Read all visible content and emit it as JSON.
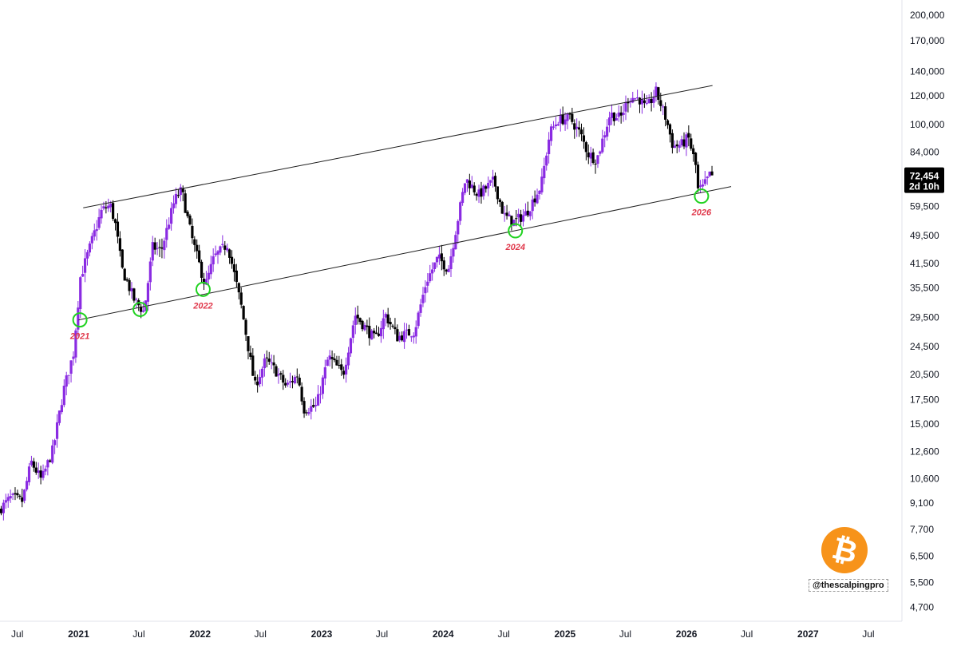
{
  "chart_data": {
    "type": "candlestick",
    "title": "",
    "xlabel": "",
    "ylabel": "",
    "scale": "log",
    "ylim": [
      4300,
      220000
    ],
    "xlim": [
      "2020-05-10",
      "2027-10-10"
    ],
    "y_ticks": [
      "200,000",
      "170,000",
      "140,000",
      "120,000",
      "100,000",
      "84,000",
      "59,500",
      "49,500",
      "41,500",
      "35,500",
      "29,500",
      "24,500",
      "20,500",
      "17,500",
      "15,000",
      "12,600",
      "10,600",
      "9,100",
      "7,700",
      "6,500",
      "5,500",
      "4,700"
    ],
    "y_tick_values": [
      200000,
      170000,
      140000,
      120000,
      100000,
      84000,
      59500,
      49500,
      41500,
      35500,
      29500,
      24500,
      20500,
      17500,
      15000,
      12600,
      10600,
      9100,
      7700,
      6500,
      5500,
      4700
    ],
    "x_ticks": [
      {
        "label": "Jul",
        "date": "2020-07-01",
        "year": false
      },
      {
        "label": "2021",
        "date": "2021-01-01",
        "year": true
      },
      {
        "label": "Jul",
        "date": "2021-07-01",
        "year": false
      },
      {
        "label": "2022",
        "date": "2022-01-01",
        "year": true
      },
      {
        "label": "Jul",
        "date": "2022-07-01",
        "year": false
      },
      {
        "label": "2023",
        "date": "2023-01-01",
        "year": true
      },
      {
        "label": "Jul",
        "date": "2023-07-01",
        "year": false
      },
      {
        "label": "2024",
        "date": "2024-01-01",
        "year": true
      },
      {
        "label": "Jul",
        "date": "2024-07-01",
        "year": false
      },
      {
        "label": "2025",
        "date": "2025-01-01",
        "year": true
      },
      {
        "label": "Jul",
        "date": "2025-07-01",
        "year": false
      },
      {
        "label": "2026",
        "date": "2026-01-01",
        "year": true
      },
      {
        "label": "Jul",
        "date": "2026-07-01",
        "year": false
      },
      {
        "label": "2027",
        "date": "2027-01-01",
        "year": true
      },
      {
        "label": "Jul",
        "date": "2027-07-01",
        "year": false
      }
    ],
    "last_price": "72,454",
    "countdown": "2d 10h",
    "up_color": "#8a2be2",
    "down_color": "#000000",
    "channel": {
      "upper": [
        {
          "date": "2021-01-15",
          "y": 59000
        },
        {
          "date": "2026-03-20",
          "y": 128000
        }
      ],
      "lower": [
        {
          "date": "2021-01-01",
          "y": 29000
        },
        {
          "date": "2026-05-15",
          "y": 67500
        }
      ]
    },
    "touch_points": [
      {
        "label": "2021",
        "date": "2021-01-05",
        "y": 29000
      },
      {
        "label": "",
        "date": "2021-07-05",
        "y": 31000
      },
      {
        "label": "2022",
        "date": "2022-01-10",
        "y": 35200
      },
      {
        "label": "2024",
        "date": "2024-08-05",
        "y": 51000
      },
      {
        "label": "2026",
        "date": "2026-02-15",
        "y": 63500
      }
    ],
    "series_path": [
      [
        "2020-05-10",
        8700
      ],
      [
        "2020-06-15",
        9400
      ],
      [
        "2020-07-20",
        9200
      ],
      [
        "2020-08-15",
        11800
      ],
      [
        "2020-09-15",
        10500
      ],
      [
        "2020-10-20",
        12800
      ],
      [
        "2020-11-20",
        18500
      ],
      [
        "2020-12-20",
        23500
      ],
      [
        "2021-01-10",
        38000
      ],
      [
        "2021-02-20",
        50000
      ],
      [
        "2021-03-15",
        58000
      ],
      [
        "2021-04-10",
        60000
      ],
      [
        "2021-04-25",
        53000
      ],
      [
        "2021-05-15",
        40000
      ],
      [
        "2021-06-20",
        33000
      ],
      [
        "2021-07-20",
        30500
      ],
      [
        "2021-08-15",
        46000
      ],
      [
        "2021-09-10",
        45000
      ],
      [
        "2021-10-20",
        62000
      ],
      [
        "2021-11-10",
        66000
      ],
      [
        "2021-12-10",
        49000
      ],
      [
        "2022-01-20",
        36000
      ],
      [
        "2022-02-15",
        43000
      ],
      [
        "2022-03-28",
        47000
      ],
      [
        "2022-05-10",
        31000
      ],
      [
        "2022-06-18",
        19000
      ],
      [
        "2022-07-20",
        22500
      ],
      [
        "2022-08-20",
        21000
      ],
      [
        "2022-09-20",
        19000
      ],
      [
        "2022-10-25",
        20500
      ],
      [
        "2022-11-12",
        16500
      ],
      [
        "2022-12-20",
        16800
      ],
      [
        "2023-01-25",
        23000
      ],
      [
        "2023-03-10",
        20500
      ],
      [
        "2023-04-15",
        30000
      ],
      [
        "2023-06-15",
        25500
      ],
      [
        "2023-07-15",
        30000
      ],
      [
        "2023-08-20",
        26000
      ],
      [
        "2023-10-10",
        27000
      ],
      [
        "2023-11-15",
        37000
      ],
      [
        "2023-12-20",
        43000
      ],
      [
        "2024-01-20",
        40000
      ],
      [
        "2024-03-12",
        71000
      ],
      [
        "2024-04-20",
        64000
      ],
      [
        "2024-06-05",
        70000
      ],
      [
        "2024-07-05",
        56000
      ],
      [
        "2024-08-05",
        54000
      ],
      [
        "2024-09-10",
        57000
      ],
      [
        "2024-10-25",
        68000
      ],
      [
        "2024-11-20",
        95000
      ],
      [
        "2024-12-15",
        103000
      ],
      [
        "2025-01-20",
        104000
      ],
      [
        "2025-02-20",
        94000
      ],
      [
        "2025-03-15",
        83000
      ],
      [
        "2025-04-10",
        80000
      ],
      [
        "2025-05-20",
        107000
      ],
      [
        "2025-06-20",
        104000
      ],
      [
        "2025-07-15",
        119000
      ],
      [
        "2025-08-15",
        118000
      ],
      [
        "2025-09-05",
        110000
      ],
      [
        "2025-10-05",
        123000
      ],
      [
        "2025-11-05",
        103000
      ],
      [
        "2025-11-25",
        87000
      ],
      [
        "2025-12-20",
        88000
      ],
      [
        "2026-01-10",
        92000
      ],
      [
        "2026-02-01",
        77000
      ],
      [
        "2026-02-08",
        66000
      ],
      [
        "2026-02-22",
        67000
      ],
      [
        "2026-03-15",
        72454
      ]
    ]
  },
  "watermark": {
    "logo_icon": "bitcoin-logo-icon",
    "logo_glyph": "₿",
    "handle": "@thescalpingpro",
    "logo_color": "#f7931a"
  }
}
